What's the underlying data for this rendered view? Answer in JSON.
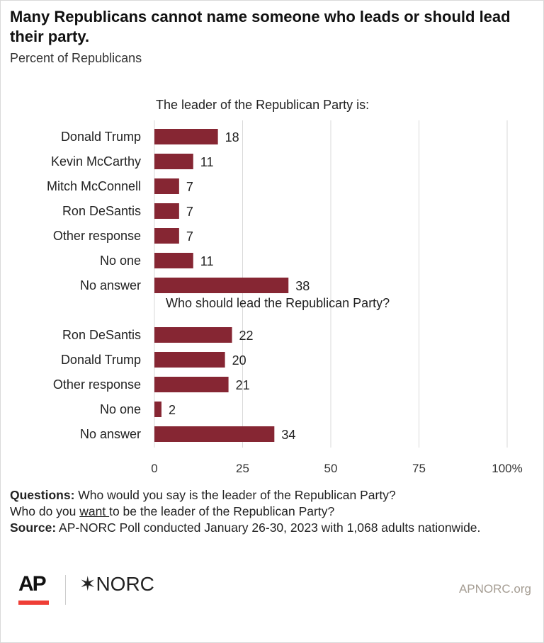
{
  "title": "Many Republicans cannot name someone who leads or should lead their party.",
  "subtitle": "Percent of Republicans",
  "colors": {
    "bar": "#862633",
    "grid": "#d9d9d9",
    "ap_red": "#ef3e36"
  },
  "chart_data": {
    "type": "bar",
    "orientation": "horizontal",
    "xlim": [
      0,
      100
    ],
    "ticks": [
      "0",
      "25",
      "50",
      "75",
      "100%"
    ],
    "tick_values": [
      0,
      25,
      50,
      75,
      100
    ],
    "groups": [
      {
        "heading": "The leader of the Republican Party is:",
        "categories": [
          "Donald Trump",
          "Kevin McCarthy",
          "Mitch McConnell",
          "Ron DeSantis",
          "Other response",
          "No one",
          "No answer"
        ],
        "values": [
          18,
          11,
          7,
          7,
          7,
          11,
          38
        ]
      },
      {
        "heading": "Who should lead the Republican Party?",
        "categories": [
          "Ron DeSantis",
          "Donald Trump",
          "Other response",
          "No one",
          "No answer"
        ],
        "values": [
          22,
          20,
          21,
          2,
          34
        ]
      }
    ]
  },
  "notes": {
    "questions_label": "Questions:",
    "questions_text1": " Who would you say is the leader of the Republican Party?",
    "questions_text2a": "Who do you ",
    "questions_want": "want ",
    "questions_text2b": "to be the leader of the Republican Party?",
    "source_label": "Source:",
    "source_text": " AP-NORC Poll conducted January 26-30, 2023 with 1,068 adults nationwide."
  },
  "footer": {
    "ap_logo": "AP",
    "norc_logo": "✶NORC",
    "site": "APNORC.org"
  }
}
